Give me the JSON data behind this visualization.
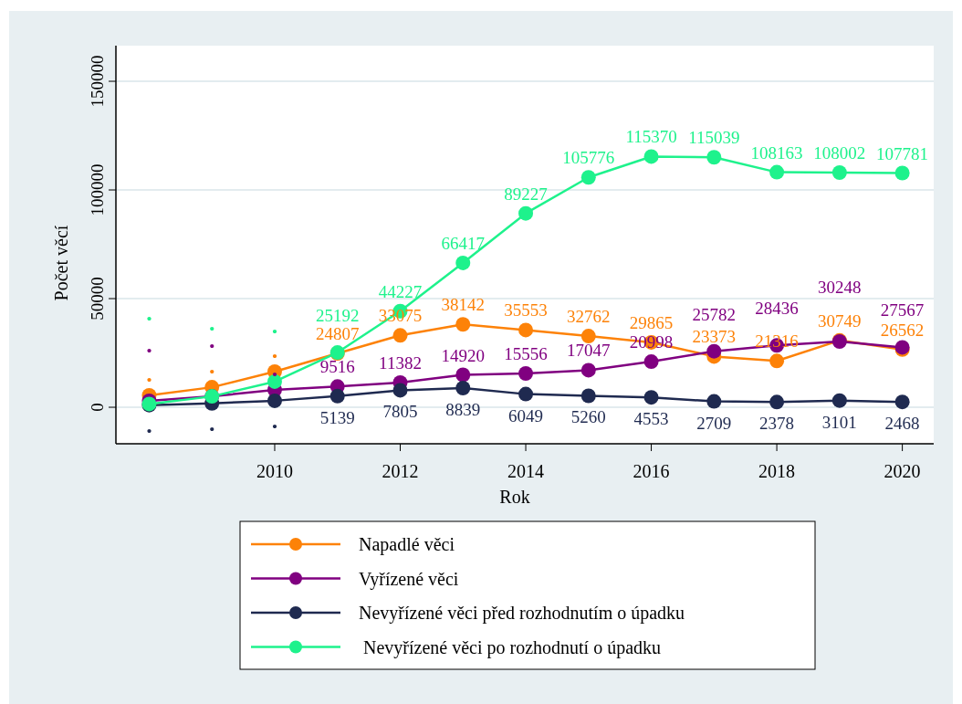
{
  "chart_data": {
    "type": "line",
    "xlabel": "Rok",
    "ylabel": "Počet věcí",
    "x": [
      2008,
      2009,
      2010,
      2011,
      2012,
      2013,
      2014,
      2015,
      2016,
      2017,
      2018,
      2019,
      2020
    ],
    "xlim": [
      2007.47,
      2020.5
    ],
    "xticks": [
      2010,
      2012,
      2014,
      2016,
      2018,
      2020
    ],
    "ylim": [
      -16800,
      166400
    ],
    "yticks": [
      0,
      50000,
      100000,
      150000
    ],
    "grid": "y",
    "legend": "bottom",
    "marker": "circle",
    "line_style": "solid",
    "series": [
      {
        "name": "Napadlé věci",
        "color": "#fd8208",
        "values": [
          5500,
          9200,
          16400,
          24807,
          33075,
          38142,
          35553,
          32762,
          29865,
          23373,
          21316,
          30749,
          26562
        ],
        "value_labels": [
          ".",
          ".",
          ".",
          "24807",
          "33075",
          "38142",
          "35553",
          "32762",
          "29865",
          "23373",
          "21316",
          "30749",
          "26562"
        ]
      },
      {
        "name": "Vyřízené věci",
        "color": "#800080",
        "values": [
          3000,
          5000,
          8000,
          9516,
          11382,
          14920,
          15556,
          17047,
          20998,
          25782,
          28436,
          30248,
          27567
        ],
        "value_labels": [
          ".",
          ".",
          ".",
          "9516",
          "11382",
          "14920",
          "15556",
          "17047",
          "20998",
          "25782",
          "28436",
          "30248",
          "27567"
        ]
      },
      {
        "name": "Nevyřízené věci před rozhodnutím o úpadku",
        "color": "#1f2a50",
        "values": [
          1000,
          1800,
          3000,
          5139,
          7805,
          8839,
          6049,
          5260,
          4553,
          2709,
          2378,
          3101,
          2468
        ],
        "value_labels": [
          ".",
          ".",
          ".",
          "5139",
          "7805",
          "8839",
          "6049",
          "5260",
          "4553",
          "2709",
          "2378",
          "3101",
          "2468"
        ]
      },
      {
        "name": " Nevyřízené věci po rozhodnutí o úpadku",
        "color": "#1ef28c",
        "values": [
          1500,
          5000,
          11800,
          25192,
          44227,
          66417,
          89227,
          105776,
          115370,
          115039,
          108163,
          108002,
          107781
        ],
        "value_labels": [
          ".",
          ".",
          ".",
          "25192",
          "44227",
          "66417",
          "89227",
          "105776",
          "115370",
          "115039",
          "108163",
          "108002",
          "107781"
        ]
      }
    ]
  }
}
